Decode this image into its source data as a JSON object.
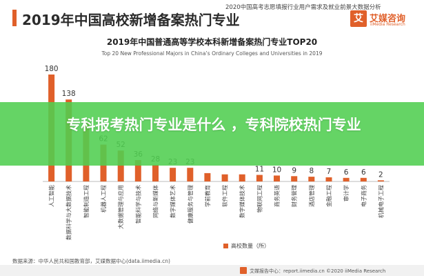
{
  "header": {
    "title": "2019年中国高校新增备案热门专业",
    "report_note": "2020中国高考志愿填报行业用户需求及就业前景大数据分析",
    "brand_logo": "艾",
    "brand_name": "艾媒咨询",
    "brand_sub": "iiMedia Research",
    "accent_color": "#e0602a"
  },
  "overlay": {
    "banner_text": "专科报考热门专业是什么 ，专科院校热门专业",
    "banner_color": "#50ce50"
  },
  "chart_data": {
    "type": "bar",
    "title": "2019年中国普通高等学校本科新增备案热门专业TOP20",
    "subtitle": "Top 20 New Professional Majors in China’s Ordinary Colleges and Universities in 2019",
    "categories": [
      "人工智能",
      "数据科学与大数据技术",
      "智能制造工程",
      "机器人工程",
      "大数据管理与应用",
      "智能科学与技术",
      "网络与新媒体",
      "数字媒体艺术",
      "健康服务与管理",
      "学前教育",
      "软件工程",
      "数字媒体技术",
      "物联网工程",
      "商务英语",
      "财务管理",
      "酒店管理",
      "金融工程",
      "审计学",
      "电子商务",
      "机械电子工程"
    ],
    "values": [
      180,
      138,
      101,
      62,
      52,
      36,
      28,
      23,
      23,
      14,
      12,
      12,
      11,
      10,
      9,
      8,
      7,
      6,
      6,
      2
    ],
    "value_labels": [
      "180",
      "138",
      "",
      "62",
      "52",
      "36",
      "28",
      "23",
      "23",
      "",
      "",
      "",
      "11",
      "10",
      "9",
      "8",
      "7",
      "6",
      "6",
      "2"
    ],
    "legend": [
      "高校数量（所）"
    ],
    "legend_position": "bottom",
    "ylim": [
      0,
      180
    ],
    "grid": false,
    "bar_color": "#e0602a"
  },
  "footer": {
    "source": "数据来源：中华人民共和国教育部，艾媒数据中心(data.iimedia.cn)",
    "report_line": "艾媒报告中心：report.iimedia.cn    ©2020  iiMedia Research"
  }
}
